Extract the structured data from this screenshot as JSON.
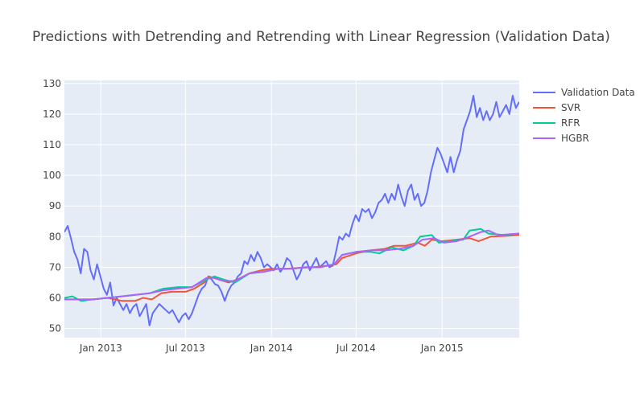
{
  "chart_data": {
    "type": "line",
    "title": "Predictions with Detrending and Retrending with Linear Regression (Validation Data)",
    "xlabel": "",
    "ylabel": "",
    "x_range": [
      "2012-10-15",
      "2015-06-15"
    ],
    "ylim": [
      47,
      131
    ],
    "x_ticks": [
      {
        "date": "2013-01-01",
        "label": "Jan 2013"
      },
      {
        "date": "2013-07-01",
        "label": "Jul 2013"
      },
      {
        "date": "2014-01-01",
        "label": "Jan 2014"
      },
      {
        "date": "2014-07-01",
        "label": "Jul 2014"
      },
      {
        "date": "2015-01-01",
        "label": "Jan 2015"
      }
    ],
    "y_ticks": [
      50,
      60,
      70,
      80,
      90,
      100,
      110,
      120,
      130
    ],
    "grid": true,
    "legend_position": "top-right",
    "background": "#e5ecf6",
    "series": [
      {
        "name": "Validation Data",
        "color": "#636efa",
        "points": [
          [
            "2012-10-15",
            81.5
          ],
          [
            "2012-10-22",
            83.5
          ],
          [
            "2012-10-29",
            79.5
          ],
          [
            "2012-11-05",
            75
          ],
          [
            "2012-11-12",
            72.5
          ],
          [
            "2012-11-19",
            68
          ],
          [
            "2012-11-26",
            76
          ],
          [
            "2012-12-03",
            75
          ],
          [
            "2012-12-10",
            69
          ],
          [
            "2012-12-17",
            66
          ],
          [
            "2012-12-24",
            71
          ],
          [
            "2012-12-31",
            67
          ],
          [
            "2013-01-07",
            63
          ],
          [
            "2013-01-14",
            61
          ],
          [
            "2013-01-21",
            65
          ],
          [
            "2013-01-28",
            57.5
          ],
          [
            "2013-02-04",
            60
          ],
          [
            "2013-02-11",
            58
          ],
          [
            "2013-02-18",
            56
          ],
          [
            "2013-02-25",
            58
          ],
          [
            "2013-03-04",
            55
          ],
          [
            "2013-03-11",
            57
          ],
          [
            "2013-03-18",
            58
          ],
          [
            "2013-03-25",
            54
          ],
          [
            "2013-04-01",
            56
          ],
          [
            "2013-04-08",
            58
          ],
          [
            "2013-04-15",
            51
          ],
          [
            "2013-04-22",
            55
          ],
          [
            "2013-04-29",
            56.5
          ],
          [
            "2013-05-06",
            58
          ],
          [
            "2013-05-13",
            57
          ],
          [
            "2013-05-20",
            56
          ],
          [
            "2013-05-27",
            55
          ],
          [
            "2013-06-03",
            56
          ],
          [
            "2013-06-10",
            54
          ],
          [
            "2013-06-17",
            52
          ],
          [
            "2013-06-24",
            54
          ],
          [
            "2013-07-01",
            55
          ],
          [
            "2013-07-08",
            53
          ],
          [
            "2013-07-15",
            55
          ],
          [
            "2013-07-22",
            58
          ],
          [
            "2013-07-29",
            61
          ],
          [
            "2013-08-05",
            63
          ],
          [
            "2013-08-12",
            64
          ],
          [
            "2013-08-19",
            67
          ],
          [
            "2013-08-26",
            66
          ],
          [
            "2013-09-02",
            64.5
          ],
          [
            "2013-09-09",
            64
          ],
          [
            "2013-09-16",
            62
          ],
          [
            "2013-09-23",
            59
          ],
          [
            "2013-09-30",
            62
          ],
          [
            "2013-10-07",
            64
          ],
          [
            "2013-10-14",
            65
          ],
          [
            "2013-10-21",
            67
          ],
          [
            "2013-10-28",
            68
          ],
          [
            "2013-11-04",
            72
          ],
          [
            "2013-11-11",
            71
          ],
          [
            "2013-11-18",
            74
          ],
          [
            "2013-11-25",
            72
          ],
          [
            "2013-12-02",
            75
          ],
          [
            "2013-12-09",
            73
          ],
          [
            "2013-12-16",
            70
          ],
          [
            "2013-12-23",
            71
          ],
          [
            "2013-12-30",
            70
          ],
          [
            "2014-01-06",
            69
          ],
          [
            "2014-01-13",
            71
          ],
          [
            "2014-01-20",
            68.5
          ],
          [
            "2014-01-27",
            70
          ],
          [
            "2014-02-03",
            73
          ],
          [
            "2014-02-10",
            72
          ],
          [
            "2014-02-17",
            69
          ],
          [
            "2014-02-24",
            66
          ],
          [
            "2014-03-03",
            68
          ],
          [
            "2014-03-10",
            71
          ],
          [
            "2014-03-17",
            72
          ],
          [
            "2014-03-24",
            69
          ],
          [
            "2014-03-31",
            71
          ],
          [
            "2014-04-07",
            73
          ],
          [
            "2014-04-14",
            70
          ],
          [
            "2014-04-21",
            71
          ],
          [
            "2014-04-28",
            72
          ],
          [
            "2014-05-05",
            70
          ],
          [
            "2014-05-12",
            70.5
          ],
          [
            "2014-05-19",
            75
          ],
          [
            "2014-05-26",
            80
          ],
          [
            "2014-06-02",
            79
          ],
          [
            "2014-06-09",
            81
          ],
          [
            "2014-06-16",
            80
          ],
          [
            "2014-06-23",
            84
          ],
          [
            "2014-06-30",
            87
          ],
          [
            "2014-07-07",
            85
          ],
          [
            "2014-07-14",
            89
          ],
          [
            "2014-07-21",
            88
          ],
          [
            "2014-07-28",
            89
          ],
          [
            "2014-08-04",
            86
          ],
          [
            "2014-08-11",
            88
          ],
          [
            "2014-08-18",
            91
          ],
          [
            "2014-08-25",
            92
          ],
          [
            "2014-09-01",
            94
          ],
          [
            "2014-09-08",
            91
          ],
          [
            "2014-09-15",
            94
          ],
          [
            "2014-09-22",
            92
          ],
          [
            "2014-09-29",
            97
          ],
          [
            "2014-10-06",
            93
          ],
          [
            "2014-10-13",
            90
          ],
          [
            "2014-10-20",
            95
          ],
          [
            "2014-10-27",
            97
          ],
          [
            "2014-11-03",
            92
          ],
          [
            "2014-11-10",
            94
          ],
          [
            "2014-11-17",
            90
          ],
          [
            "2014-11-24",
            91
          ],
          [
            "2014-12-01",
            95
          ],
          [
            "2014-12-08",
            101
          ],
          [
            "2014-12-15",
            105
          ],
          [
            "2014-12-22",
            109
          ],
          [
            "2014-12-29",
            107
          ],
          [
            "2015-01-05",
            104
          ],
          [
            "2015-01-12",
            101
          ],
          [
            "2015-01-19",
            106
          ],
          [
            "2015-01-26",
            101
          ],
          [
            "2015-02-02",
            105
          ],
          [
            "2015-02-09",
            108
          ],
          [
            "2015-02-16",
            115
          ],
          [
            "2015-02-23",
            118
          ],
          [
            "2015-03-02",
            121
          ],
          [
            "2015-03-09",
            126
          ],
          [
            "2015-03-16",
            119
          ],
          [
            "2015-03-23",
            122
          ],
          [
            "2015-03-30",
            118
          ],
          [
            "2015-04-06",
            121
          ],
          [
            "2015-04-13",
            118
          ],
          [
            "2015-04-20",
            120
          ],
          [
            "2015-04-27",
            124
          ],
          [
            "2015-05-04",
            119
          ],
          [
            "2015-05-11",
            121
          ],
          [
            "2015-05-18",
            123
          ],
          [
            "2015-05-25",
            120
          ],
          [
            "2015-06-01",
            126
          ],
          [
            "2015-06-08",
            122
          ],
          [
            "2015-06-15",
            124
          ]
        ]
      },
      {
        "name": "SVR",
        "color": "#ef553b",
        "points": [
          [
            "2012-10-15",
            59.5
          ],
          [
            "2012-11-15",
            59.5
          ],
          [
            "2012-12-15",
            59.5
          ],
          [
            "2013-01-15",
            60
          ],
          [
            "2013-02-01",
            59.5
          ],
          [
            "2013-02-15",
            59
          ],
          [
            "2013-03-15",
            59
          ],
          [
            "2013-04-01",
            60
          ],
          [
            "2013-04-20",
            59.5
          ],
          [
            "2013-05-10",
            61.5
          ],
          [
            "2013-06-01",
            62
          ],
          [
            "2013-07-01",
            62
          ],
          [
            "2013-07-20",
            63
          ],
          [
            "2013-08-10",
            65
          ],
          [
            "2013-08-20",
            67
          ],
          [
            "2013-09-10",
            66
          ],
          [
            "2013-10-01",
            65
          ],
          [
            "2013-10-20",
            66
          ],
          [
            "2013-11-15",
            68
          ],
          [
            "2013-12-10",
            69
          ],
          [
            "2014-01-01",
            69.5
          ],
          [
            "2014-02-01",
            69.5
          ],
          [
            "2014-03-01",
            69.8
          ],
          [
            "2014-04-01",
            70
          ],
          [
            "2014-05-01",
            70.5
          ],
          [
            "2014-05-20",
            71
          ],
          [
            "2014-06-01",
            73
          ],
          [
            "2014-07-01",
            74.5
          ],
          [
            "2014-08-01",
            75.5
          ],
          [
            "2014-09-01",
            76
          ],
          [
            "2014-09-20",
            77
          ],
          [
            "2014-10-15",
            77
          ],
          [
            "2014-11-10",
            78
          ],
          [
            "2014-11-25",
            77
          ],
          [
            "2014-12-10",
            79
          ],
          [
            "2015-01-01",
            78.5
          ],
          [
            "2015-02-01",
            79
          ],
          [
            "2015-03-01",
            79.5
          ],
          [
            "2015-03-20",
            78.5
          ],
          [
            "2015-04-15",
            80
          ],
          [
            "2015-05-15",
            80.2
          ],
          [
            "2015-06-15",
            80.5
          ]
        ]
      },
      {
        "name": "RFR",
        "color": "#00cc96",
        "points": [
          [
            "2012-10-15",
            60
          ],
          [
            "2012-11-01",
            60.5
          ],
          [
            "2012-11-20",
            59
          ],
          [
            "2012-12-15",
            59.5
          ],
          [
            "2013-01-15",
            60
          ],
          [
            "2013-02-15",
            60.5
          ],
          [
            "2013-03-15",
            61
          ],
          [
            "2013-04-15",
            61.5
          ],
          [
            "2013-05-15",
            63
          ],
          [
            "2013-06-15",
            63.5
          ],
          [
            "2013-07-15",
            63.5
          ],
          [
            "2013-08-15",
            66
          ],
          [
            "2013-09-01",
            67
          ],
          [
            "2013-09-20",
            66
          ],
          [
            "2013-10-15",
            65
          ],
          [
            "2013-11-15",
            68
          ],
          [
            "2013-12-15",
            68.5
          ],
          [
            "2014-01-15",
            69.5
          ],
          [
            "2014-02-15",
            69.5
          ],
          [
            "2014-03-15",
            70
          ],
          [
            "2014-04-15",
            70
          ],
          [
            "2014-05-15",
            71
          ],
          [
            "2014-06-01",
            74
          ],
          [
            "2014-07-01",
            75
          ],
          [
            "2014-08-01",
            75
          ],
          [
            "2014-08-20",
            74.5
          ],
          [
            "2014-09-15",
            76.5
          ],
          [
            "2014-10-10",
            75.5
          ],
          [
            "2014-11-01",
            77
          ],
          [
            "2014-11-15",
            80
          ],
          [
            "2014-12-10",
            80.5
          ],
          [
            "2014-12-25",
            78
          ],
          [
            "2015-01-15",
            78.5
          ],
          [
            "2015-02-15",
            79
          ],
          [
            "2015-03-01",
            82
          ],
          [
            "2015-03-25",
            82.5
          ],
          [
            "2015-04-10",
            81
          ],
          [
            "2015-05-15",
            80.5
          ],
          [
            "2015-06-15",
            81
          ]
        ]
      },
      {
        "name": "HGBR",
        "color": "#ab63fa",
        "points": [
          [
            "2012-10-15",
            59.5
          ],
          [
            "2012-11-15",
            59.5
          ],
          [
            "2012-12-15",
            59.5
          ],
          [
            "2013-01-15",
            60
          ],
          [
            "2013-02-15",
            60.5
          ],
          [
            "2013-03-15",
            61
          ],
          [
            "2013-04-15",
            61.5
          ],
          [
            "2013-05-15",
            62.5
          ],
          [
            "2013-06-15",
            63
          ],
          [
            "2013-07-15",
            63.5
          ],
          [
            "2013-08-15",
            66.5
          ],
          [
            "2013-09-01",
            66.5
          ],
          [
            "2013-09-20",
            65.5
          ],
          [
            "2013-10-15",
            65.5
          ],
          [
            "2013-11-15",
            68
          ],
          [
            "2013-12-15",
            68.5
          ],
          [
            "2014-01-15",
            69.5
          ],
          [
            "2014-02-15",
            69.5
          ],
          [
            "2014-03-15",
            70
          ],
          [
            "2014-04-15",
            70
          ],
          [
            "2014-05-15",
            71
          ],
          [
            "2014-06-01",
            74
          ],
          [
            "2014-07-01",
            75
          ],
          [
            "2014-08-01",
            75.5
          ],
          [
            "2014-09-01",
            75.5
          ],
          [
            "2014-10-01",
            76
          ],
          [
            "2014-11-01",
            77
          ],
          [
            "2014-11-20",
            79
          ],
          [
            "2014-12-15",
            79.5
          ],
          [
            "2015-01-05",
            78
          ],
          [
            "2015-02-01",
            78.5
          ],
          [
            "2015-03-01",
            80
          ],
          [
            "2015-03-25",
            81.5
          ],
          [
            "2015-04-10",
            82
          ],
          [
            "2015-05-01",
            80.5
          ],
          [
            "2015-06-15",
            81
          ]
        ]
      }
    ]
  }
}
